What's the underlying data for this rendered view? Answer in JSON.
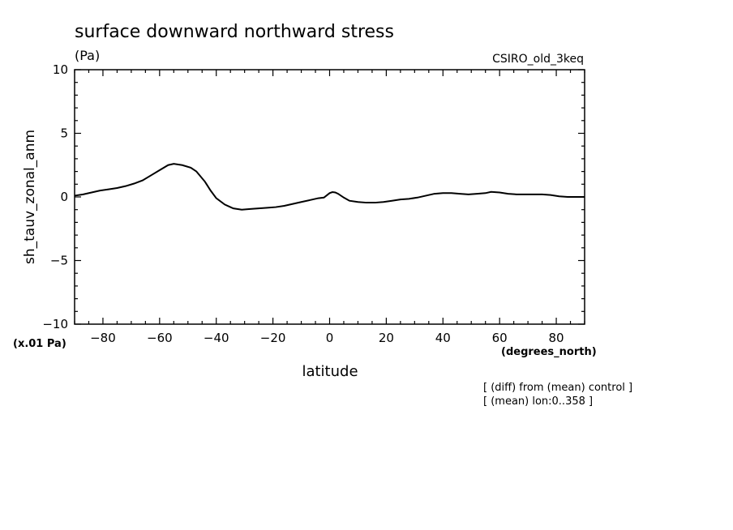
{
  "chart_data": {
    "type": "line",
    "title": "surface downward northward stress",
    "units": "(Pa)",
    "model": "CSIRO_old_3keq",
    "ylabel": "sh_tauv_zonal_anm",
    "xlabel": "latitude",
    "x_units": "(degrees_north)",
    "y_scale_note": "(x.01 Pa)",
    "notes": [
      "[ (diff) from (mean) control ]",
      "[ (mean) lon:0..358 ]"
    ],
    "xlim": [
      -90,
      90
    ],
    "ylim": [
      -10,
      10
    ],
    "x_ticks": [
      -80,
      -60,
      -40,
      -20,
      0,
      20,
      40,
      60,
      80
    ],
    "y_ticks": [
      -10,
      -5,
      0,
      5,
      10
    ],
    "grid": false,
    "series": [
      {
        "x": [
          -90,
          -87,
          -84,
          -81,
          -78,
          -75,
          -72,
          -69,
          -66,
          -63,
          -60,
          -57,
          -55,
          -52,
          -49,
          -47,
          -44,
          -42,
          -40,
          -37,
          -34,
          -31,
          -28,
          -25,
          -22,
          -19,
          -16,
          -13,
          -10,
          -7,
          -4,
          -2,
          0,
          1,
          2,
          3,
          5,
          7,
          10,
          13,
          16,
          19,
          22,
          25,
          28,
          31,
          34,
          37,
          40,
          43,
          46,
          49,
          52,
          55,
          57,
          60,
          63,
          66,
          69,
          72,
          75,
          78,
          81,
          84,
          87,
          90
        ],
        "y": [
          0.1,
          0.2,
          0.35,
          0.5,
          0.6,
          0.7,
          0.85,
          1.05,
          1.3,
          1.7,
          2.1,
          2.5,
          2.6,
          2.5,
          2.3,
          2.0,
          1.2,
          0.5,
          -0.1,
          -0.6,
          -0.9,
          -1.0,
          -0.95,
          -0.9,
          -0.85,
          -0.8,
          -0.7,
          -0.55,
          -0.4,
          -0.25,
          -0.1,
          -0.05,
          0.3,
          0.38,
          0.35,
          0.25,
          -0.05,
          -0.3,
          -0.4,
          -0.45,
          -0.45,
          -0.4,
          -0.3,
          -0.2,
          -0.15,
          -0.05,
          0.1,
          0.25,
          0.3,
          0.3,
          0.25,
          0.2,
          0.25,
          0.3,
          0.4,
          0.35,
          0.25,
          0.2,
          0.2,
          0.2,
          0.2,
          0.15,
          0.05,
          0.0,
          0.0,
          0.0
        ]
      }
    ]
  }
}
